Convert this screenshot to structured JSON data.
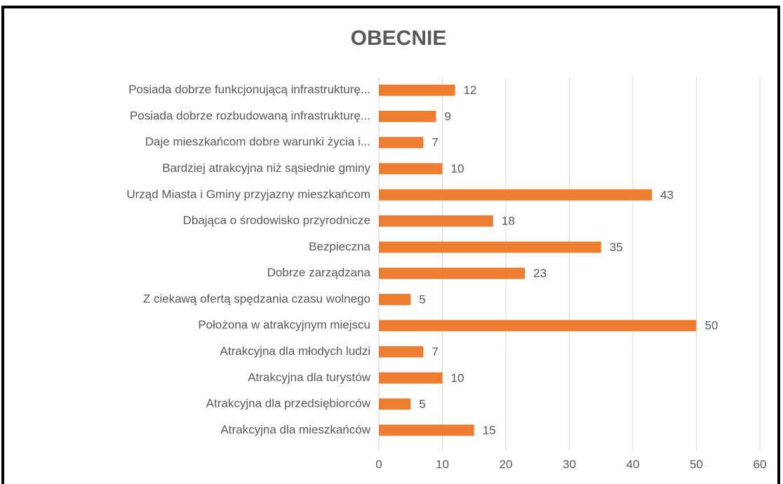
{
  "chart_data": {
    "type": "bar",
    "orientation": "horizontal",
    "title": "OBECNIE",
    "categories": [
      "Posiada dobrze funkcjonującą infrastrukturę...",
      "Posiada dobrze rozbudowaną infrastrukturę...",
      "Daje mieszkańcom dobre warunki życia i...",
      "Bardziej atrakcyjna niż sąsiednie gminy",
      "Urząd Miasta i Gminy przyjazny mieszkańcom",
      "Dbająca o środowisko przyrodnicze",
      "Bezpieczna",
      "Dobrze zarządzana",
      "Z ciekawą ofertą spędzania czasu wolnego",
      "Położona w atrakcyjnym miejscu",
      "Atrakcyjna dla młodych ludzi",
      "Atrakcyjna dla turystów",
      "Atrakcyjna dla przedsiębiorców",
      "Atrakcyjna dla mieszkańców"
    ],
    "values": [
      12,
      9,
      7,
      10,
      43,
      18,
      35,
      23,
      5,
      50,
      7,
      10,
      5,
      15
    ],
    "color": "#ed7d31",
    "xlim": [
      0,
      60
    ],
    "xticks": [
      0,
      10,
      20,
      30,
      40,
      50,
      60
    ],
    "grid": true
  }
}
